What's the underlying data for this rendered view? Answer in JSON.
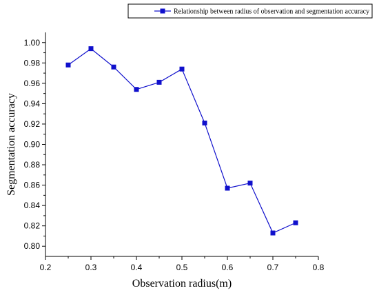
{
  "chart_data": {
    "type": "line",
    "xlabel": "Observation radius(m)",
    "ylabel": "Segmentation accuracy",
    "xlim": [
      0.2,
      0.8
    ],
    "ylim": [
      0.79,
      1.01
    ],
    "x_ticks": [
      "0.2",
      "0.3",
      "0.4",
      "0.5",
      "0.6",
      "0.7",
      "0.8"
    ],
    "y_ticks": [
      "0.80",
      "0.82",
      "0.84",
      "0.86",
      "0.88",
      "0.90",
      "0.92",
      "0.94",
      "0.96",
      "0.98",
      "1.00"
    ],
    "grid": false,
    "legend_position": "top-right",
    "series": [
      {
        "name": "Relationship between radius of observation and segmentation accuracy",
        "color": "#1010cc",
        "marker": "square",
        "x": [
          0.25,
          0.3,
          0.35,
          0.4,
          0.45,
          0.5,
          0.55,
          0.6,
          0.65,
          0.7,
          0.75
        ],
        "y": [
          0.978,
          0.994,
          0.976,
          0.954,
          0.961,
          0.974,
          0.921,
          0.857,
          0.862,
          0.813,
          0.823
        ]
      }
    ]
  }
}
